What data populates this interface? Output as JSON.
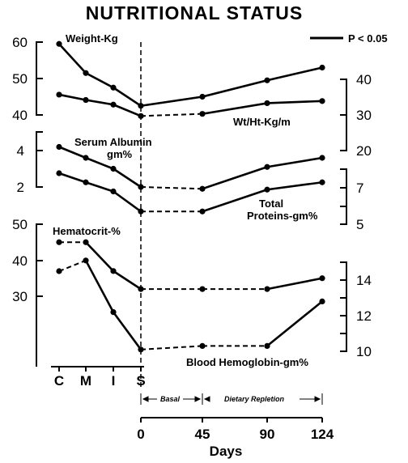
{
  "chart_data": {
    "type": "line",
    "title": "NUTRITIONAL STATUS",
    "legend": {
      "label": "P < 0.05",
      "note": "solid segments",
      "placement": "top-right"
    },
    "x_label": "Days",
    "x_stage_ticks": [
      "C",
      "M",
      "I",
      "S"
    ],
    "x_day_ticks": [
      "0",
      "45",
      "90",
      "124"
    ],
    "phases": [
      "Basal",
      "Dietary Repletion"
    ],
    "panels": [
      {
        "name": "weight",
        "left_ticks": [
          "60",
          "50",
          "40"
        ],
        "right_ticks": [
          "40",
          "30",
          "20"
        ],
        "series": [
          {
            "name": "Weight-Kg",
            "axis": "left",
            "points": [
              [
                "C",
                59.5
              ],
              [
                "M",
                51.5
              ],
              [
                "I",
                47.5
              ],
              [
                "S",
                42.5
              ],
              [
                "45",
                45
              ],
              [
                "90",
                49.5
              ],
              [
                "124",
                53
              ]
            ],
            "segment_styles": [
              "solid",
              "solid",
              "solid",
              "solid",
              "solid",
              "solid"
            ]
          },
          {
            "name": "Wt/Ht-Kg/m",
            "axis": "right",
            "points": [
              [
                "C",
                35.7
              ],
              [
                "M",
                34.2
              ],
              [
                "I",
                32.9
              ],
              [
                "S",
                29.7
              ],
              [
                "45",
                30.3
              ],
              [
                "90",
                33.3
              ],
              [
                "124",
                33.9
              ]
            ],
            "segment_styles": [
              "solid",
              "solid",
              "solid",
              "dashed",
              "solid",
              "solid"
            ]
          }
        ]
      },
      {
        "name": "protein",
        "left_ticks": [
          "4",
          "2"
        ],
        "right_ticks": [
          "7",
          "5"
        ],
        "series": [
          {
            "name": "Serum Albumin gm%",
            "axis": "left",
            "points": [
              [
                "C",
                4.2
              ],
              [
                "M",
                3.6
              ],
              [
                "I",
                3.0
              ],
              [
                "S",
                2.0
              ],
              [
                "45",
                1.9
              ],
              [
                "90",
                3.1
              ],
              [
                "124",
                3.6
              ]
            ],
            "segment_styles": [
              "solid",
              "solid",
              "solid",
              "dashed",
              "solid",
              "solid"
            ]
          },
          {
            "name": "Total Proteins-gm%",
            "axis": "right",
            "points": [
              [
                "C",
                7.8
              ],
              [
                "M",
                7.3
              ],
              [
                "I",
                6.8
              ],
              [
                "S",
                5.7
              ],
              [
                "45",
                5.7
              ],
              [
                "90",
                6.9
              ],
              [
                "124",
                7.3
              ]
            ],
            "segment_styles": [
              "solid",
              "solid",
              "solid",
              "dashed",
              "solid",
              "solid"
            ]
          }
        ]
      },
      {
        "name": "blood",
        "left_ticks": [
          "50",
          "40",
          "30"
        ],
        "right_ticks": [
          "14",
          "12",
          "10"
        ],
        "series": [
          {
            "name": "Hematocrit-%",
            "axis": "left",
            "points": [
              [
                "C",
                45
              ],
              [
                "M",
                45
              ],
              [
                "I",
                37
              ],
              [
                "S",
                32
              ],
              [
                "45",
                32
              ],
              [
                "90",
                32
              ],
              [
                "124",
                35
              ]
            ],
            "segment_styles": [
              "dashed",
              "solid",
              "solid",
              "dashed",
              "dashed",
              "solid"
            ]
          },
          {
            "name": "Blood Hemoglobin-gm%",
            "axis": "right",
            "points": [
              [
                "C",
                14.5
              ],
              [
                "M",
                15.1
              ],
              [
                "I",
                12.2
              ],
              [
                "S",
                10.1
              ],
              [
                "45",
                10.3
              ],
              [
                "90",
                10.3
              ],
              [
                "124",
                12.8
              ]
            ],
            "segment_styles": [
              "dashed",
              "solid",
              "solid",
              "dashed",
              "dashed",
              "solid"
            ]
          }
        ]
      }
    ]
  },
  "labels": {
    "weight": "Weight-Kg",
    "wtht": "Wt/Ht-Kg/m",
    "albumin_1": "Serum Albumin",
    "albumin_2": "gm%",
    "proteins_1": "Total",
    "proteins_2": "Proteins-gm%",
    "hematocrit": "Hematocrit-%",
    "hemoglobin": "Blood Hemoglobin-gm%"
  }
}
